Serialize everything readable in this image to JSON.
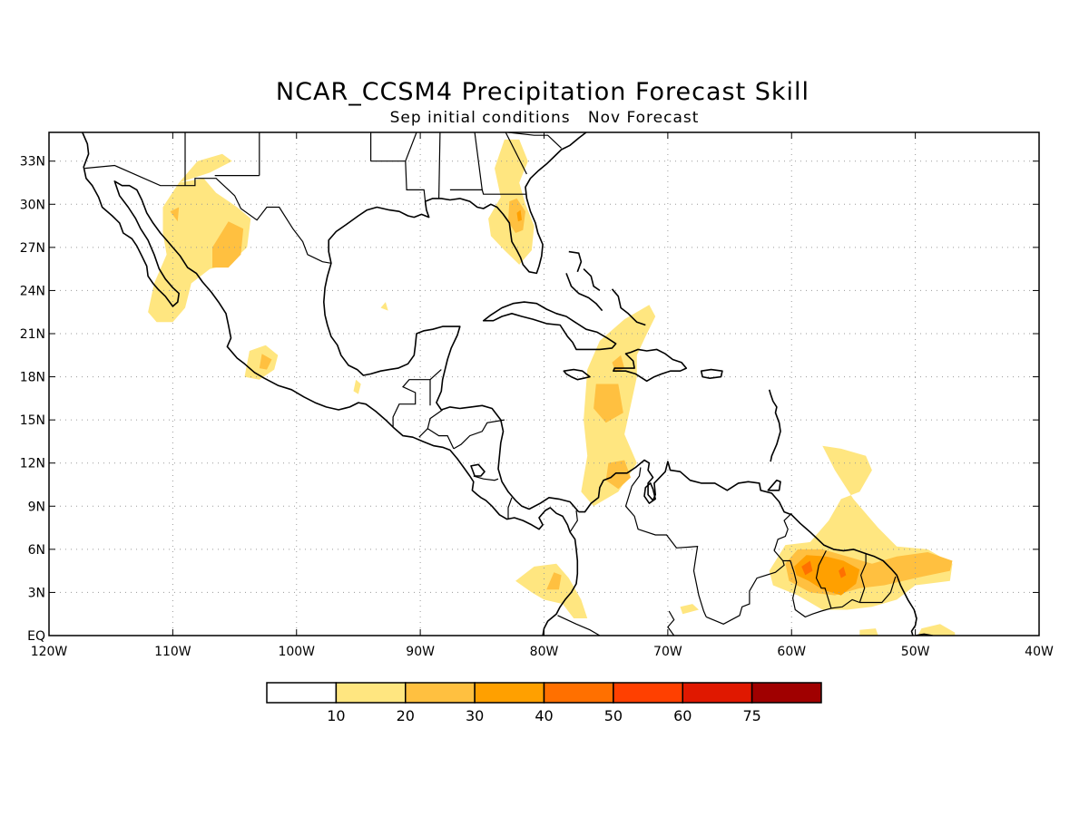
{
  "title": "NCAR_CCSM4 Precipitation Forecast Skill",
  "subtitle": "Sep initial conditions   Nov Forecast",
  "map": {
    "lon_range": [
      -120,
      -40
    ],
    "lat_range": [
      0,
      35
    ],
    "lon_ticks": [
      {
        "value": -120,
        "label": "120W"
      },
      {
        "value": -110,
        "label": "110W"
      },
      {
        "value": -100,
        "label": "100W"
      },
      {
        "value": -90,
        "label": "90W"
      },
      {
        "value": -80,
        "label": "80W"
      },
      {
        "value": -70,
        "label": "70W"
      },
      {
        "value": -60,
        "label": "60W"
      },
      {
        "value": -50,
        "label": "50W"
      },
      {
        "value": -40,
        "label": "40W"
      }
    ],
    "lat_ticks": [
      {
        "value": 0,
        "label": "EQ"
      },
      {
        "value": 3,
        "label": "3N"
      },
      {
        "value": 6,
        "label": "6N"
      },
      {
        "value": 9,
        "label": "9N"
      },
      {
        "value": 12,
        "label": "12N"
      },
      {
        "value": 15,
        "label": "15N"
      },
      {
        "value": 18,
        "label": "18N"
      },
      {
        "value": 21,
        "label": "21N"
      },
      {
        "value": 24,
        "label": "24N"
      },
      {
        "value": 27,
        "label": "27N"
      },
      {
        "value": 30,
        "label": "30N"
      },
      {
        "value": 33,
        "label": "33N"
      }
    ],
    "grid": true
  },
  "colorbar": {
    "colors": [
      "#ffffff",
      "#ffe680",
      "#ffc040",
      "#ffa000",
      "#ff7000",
      "#ff4000",
      "#e01800",
      "#a00000"
    ],
    "labels": [
      "10",
      "20",
      "30",
      "40",
      "50",
      "60",
      "75"
    ]
  },
  "skill_regions": [
    {
      "level": 1,
      "coords": [
        [
          -110.8,
          29.8
        ],
        [
          -109.5,
          31.5
        ],
        [
          -107.5,
          31.8
        ],
        [
          -106.5,
          30.8
        ],
        [
          -104.8,
          29.8
        ],
        [
          -103.7,
          29.0
        ],
        [
          -104.0,
          27.0
        ],
        [
          -105.5,
          25.8
        ],
        [
          -107.0,
          25.5
        ],
        [
          -108.5,
          24.5
        ],
        [
          -109.0,
          22.8
        ],
        [
          -110.0,
          21.8
        ],
        [
          -111.3,
          21.8
        ],
        [
          -112.0,
          22.5
        ],
        [
          -111.5,
          24.5
        ],
        [
          -110.5,
          26.5
        ],
        [
          -110.8,
          28.0
        ]
      ]
    },
    {
      "level": 1,
      "coords": [
        [
          -109.5,
          31.5
        ],
        [
          -108.0,
          33.0
        ],
        [
          -106.0,
          33.5
        ],
        [
          -105.2,
          33.0
        ],
        [
          -107.0,
          32.2
        ]
      ]
    },
    {
      "level": 2,
      "coords": [
        [
          -106.8,
          27.0
        ],
        [
          -105.5,
          28.8
        ],
        [
          -104.3,
          28.3
        ],
        [
          -104.5,
          26.5
        ],
        [
          -105.5,
          25.6
        ],
        [
          -106.8,
          25.6
        ]
      ]
    },
    {
      "level": 2,
      "coords": [
        [
          -110.2,
          29.5
        ],
        [
          -109.5,
          29.8
        ],
        [
          -109.6,
          28.8
        ]
      ]
    },
    {
      "level": 1,
      "coords": [
        [
          -104.2,
          18.0
        ],
        [
          -103.8,
          19.8
        ],
        [
          -102.5,
          20.2
        ],
        [
          -101.5,
          19.5
        ],
        [
          -101.8,
          18.5
        ],
        [
          -103.0,
          17.8
        ]
      ]
    },
    {
      "level": 2,
      "coords": [
        [
          -103.0,
          18.6
        ],
        [
          -102.8,
          19.6
        ],
        [
          -102.0,
          19.2
        ],
        [
          -102.4,
          18.5
        ]
      ]
    },
    {
      "level": 1,
      "coords": [
        [
          -95.4,
          17.0
        ],
        [
          -95.2,
          17.8
        ],
        [
          -94.8,
          17.5
        ],
        [
          -95.0,
          16.8
        ]
      ]
    },
    {
      "level": 1,
      "coords": [
        [
          -93.2,
          22.8
        ],
        [
          -92.8,
          23.2
        ],
        [
          -92.6,
          22.6
        ]
      ]
    },
    {
      "level": 1,
      "coords": [
        [
          -84.0,
          32.5
        ],
        [
          -83.2,
          34.5
        ],
        [
          -82.0,
          34.5
        ],
        [
          -81.3,
          33.0
        ],
        [
          -82.0,
          31.5
        ],
        [
          -81.5,
          30.0
        ],
        [
          -80.8,
          28.5
        ],
        [
          -81.0,
          26.8
        ],
        [
          -82.0,
          25.8
        ],
        [
          -83.2,
          26.8
        ],
        [
          -84.3,
          27.8
        ],
        [
          -84.5,
          29.0
        ],
        [
          -83.5,
          30.5
        ]
      ]
    },
    {
      "level": 2,
      "coords": [
        [
          -82.8,
          30.2
        ],
        [
          -82.2,
          30.4
        ],
        [
          -81.5,
          29.5
        ],
        [
          -81.7,
          28.2
        ],
        [
          -82.3,
          28.0
        ],
        [
          -82.9,
          28.8
        ]
      ]
    },
    {
      "level": 3,
      "coords": [
        [
          -82.2,
          29.4
        ],
        [
          -81.9,
          29.6
        ],
        [
          -81.8,
          28.9
        ],
        [
          -82.1,
          28.8
        ]
      ]
    },
    {
      "level": 1,
      "coords": [
        [
          -76.5,
          18.5
        ],
        [
          -75.5,
          20.5
        ],
        [
          -73.5,
          22.0
        ],
        [
          -71.5,
          23.0
        ],
        [
          -71.0,
          22.2
        ],
        [
          -71.8,
          20.8
        ],
        [
          -72.5,
          19.5
        ],
        [
          -72.5,
          18.0
        ],
        [
          -73.0,
          16.0
        ],
        [
          -73.5,
          14.0
        ],
        [
          -72.5,
          12.0
        ],
        [
          -74.0,
          10.0
        ],
        [
          -76.0,
          9.0
        ],
        [
          -77.0,
          10.0
        ],
        [
          -76.5,
          12.5
        ],
        [
          -76.8,
          15.0
        ]
      ]
    },
    {
      "level": 2,
      "coords": [
        [
          -74.8,
          12.0
        ],
        [
          -73.5,
          12.2
        ],
        [
          -73.0,
          11.0
        ],
        [
          -74.0,
          10.2
        ],
        [
          -75.0,
          10.8
        ]
      ]
    },
    {
      "level": 2,
      "coords": [
        [
          -75.8,
          17.5
        ],
        [
          -74.0,
          17.5
        ],
        [
          -73.6,
          15.5
        ],
        [
          -75.0,
          14.8
        ],
        [
          -76.0,
          15.8
        ]
      ]
    },
    {
      "level": 2,
      "coords": [
        [
          -74.5,
          19.0
        ],
        [
          -73.8,
          19.5
        ],
        [
          -73.5,
          18.6
        ],
        [
          -74.2,
          18.3
        ]
      ]
    },
    {
      "level": 1,
      "coords": [
        [
          -82.3,
          3.8
        ],
        [
          -80.8,
          4.8
        ],
        [
          -79.0,
          5.0
        ],
        [
          -78.0,
          4.0
        ],
        [
          -77.0,
          2.5
        ],
        [
          -76.5,
          1.2
        ],
        [
          -77.6,
          1.2
        ],
        [
          -78.5,
          2.2
        ],
        [
          -80.0,
          2.5
        ],
        [
          -81.0,
          3.0
        ]
      ]
    },
    {
      "level": 2,
      "coords": [
        [
          -79.8,
          3.2
        ],
        [
          -79.2,
          4.4
        ],
        [
          -78.6,
          4.2
        ],
        [
          -78.8,
          3.2
        ]
      ]
    },
    {
      "level": 1,
      "coords": [
        [
          -61.8,
          4.5
        ],
        [
          -60.5,
          6.3
        ],
        [
          -58.5,
          6.5
        ],
        [
          -57.0,
          8.0
        ],
        [
          -56.0,
          9.5
        ],
        [
          -54.5,
          10.0
        ],
        [
          -53.5,
          11.5
        ],
        [
          -54.0,
          12.5
        ],
        [
          -56.0,
          13.0
        ],
        [
          -57.5,
          13.2
        ],
        [
          -56.5,
          11.5
        ],
        [
          -55.0,
          9.5
        ],
        [
          -53.0,
          7.5
        ],
        [
          -51.5,
          6.2
        ],
        [
          -49.0,
          6.0
        ],
        [
          -47.0,
          5.0
        ],
        [
          -47.2,
          3.8
        ],
        [
          -50.0,
          3.5
        ],
        [
          -51.5,
          2.5
        ],
        [
          -53.5,
          2.0
        ],
        [
          -55.5,
          1.8
        ],
        [
          -57.5,
          1.8
        ],
        [
          -59.5,
          2.8
        ],
        [
          -61.5,
          3.5
        ]
      ]
    },
    {
      "level": 1,
      "coords": [
        [
          -54.5,
          0.4
        ],
        [
          -53.2,
          0.5
        ],
        [
          -53.0,
          0.0
        ],
        [
          -54.5,
          0.0
        ]
      ]
    },
    {
      "level": 1,
      "coords": [
        [
          -49.5,
          0.5
        ],
        [
          -48.0,
          0.8
        ],
        [
          -46.8,
          0.2
        ],
        [
          -46.8,
          0.0
        ],
        [
          -49.8,
          0.0
        ]
      ]
    },
    {
      "level": 1,
      "coords": [
        [
          -69.0,
          2.0
        ],
        [
          -68.0,
          2.2
        ],
        [
          -67.5,
          1.8
        ],
        [
          -68.8,
          1.5
        ]
      ]
    },
    {
      "level": 2,
      "coords": [
        [
          -60.5,
          5.0
        ],
        [
          -59.5,
          6.0
        ],
        [
          -57.5,
          6.0
        ],
        [
          -55.5,
          5.5
        ],
        [
          -53.5,
          5.0
        ],
        [
          -51.5,
          5.5
        ],
        [
          -49.0,
          5.8
        ],
        [
          -47.0,
          5.2
        ],
        [
          -47.2,
          4.5
        ],
        [
          -50.0,
          4.0
        ],
        [
          -52.5,
          3.5
        ],
        [
          -54.5,
          3.3
        ],
        [
          -56.5,
          2.8
        ],
        [
          -58.5,
          3.0
        ],
        [
          -60.2,
          3.8
        ]
      ]
    },
    {
      "level": 3,
      "coords": [
        [
          -59.8,
          4.8
        ],
        [
          -58.8,
          5.6
        ],
        [
          -57.2,
          5.5
        ],
        [
          -55.8,
          5.2
        ],
        [
          -54.5,
          4.6
        ],
        [
          -54.8,
          3.6
        ],
        [
          -56.0,
          2.8
        ],
        [
          -57.5,
          3.2
        ],
        [
          -58.6,
          3.8
        ],
        [
          -59.6,
          4.2
        ]
      ]
    },
    {
      "level": 4,
      "coords": [
        [
          -59.2,
          4.8
        ],
        [
          -58.5,
          5.2
        ],
        [
          -58.3,
          4.5
        ],
        [
          -58.9,
          4.2
        ]
      ]
    },
    {
      "level": 4,
      "coords": [
        [
          -56.2,
          4.5
        ],
        [
          -55.8,
          4.8
        ],
        [
          -55.6,
          4.2
        ],
        [
          -56.0,
          4.0
        ]
      ]
    }
  ]
}
